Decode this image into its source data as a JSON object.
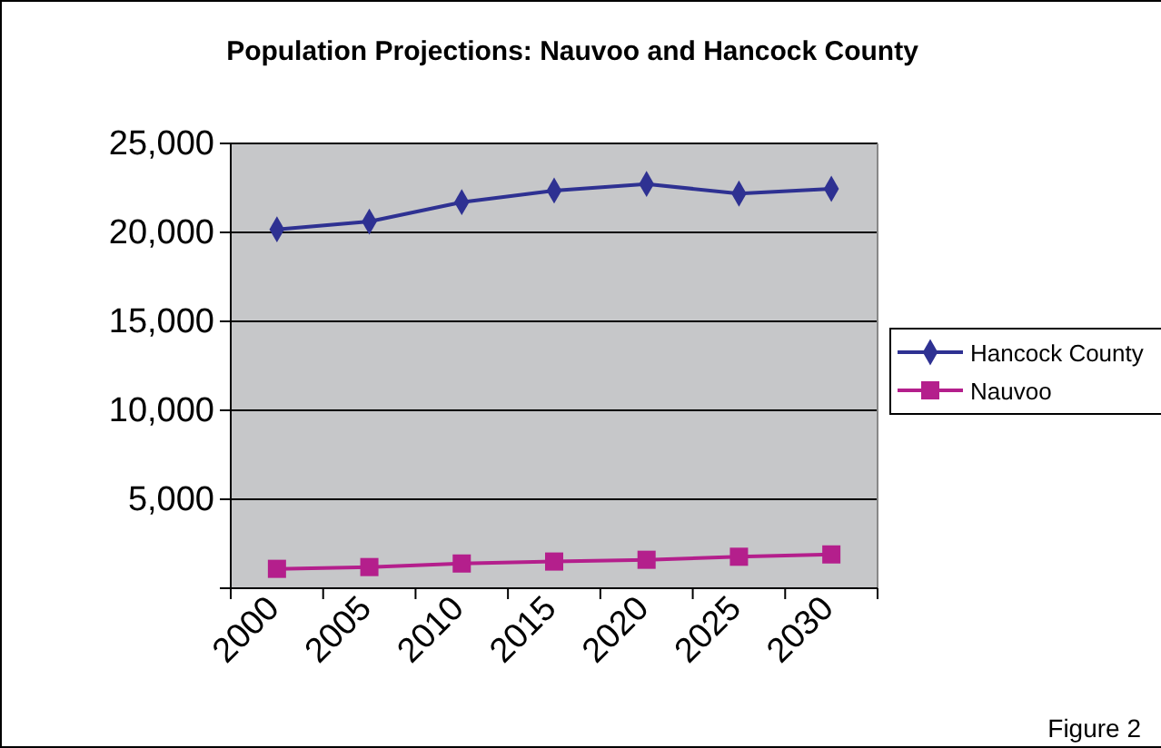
{
  "chart_data": {
    "type": "line",
    "title": "Population Projections: Nauvoo and Hancock County",
    "categories": [
      "2000",
      "2005",
      "2010",
      "2015",
      "2020",
      "2025",
      "2030"
    ],
    "series": [
      {
        "name": "Hancock County",
        "color": "#2e3192",
        "marker": "diamond",
        "values": [
          20170,
          20610,
          21700,
          22350,
          22720,
          22180,
          22450
        ]
      },
      {
        "name": "Nauvoo",
        "color": "#b41f8c",
        "marker": "square",
        "values": [
          1090,
          1190,
          1390,
          1500,
          1600,
          1770,
          1900
        ]
      }
    ],
    "ylim": [
      0,
      25000
    ],
    "yticks": [
      {
        "value": 0,
        "label": null
      },
      {
        "value": 5000,
        "label": "5,000"
      },
      {
        "value": 10000,
        "label": "10,000"
      },
      {
        "value": 15000,
        "label": "15,000"
      },
      {
        "value": 20000,
        "label": "20,000"
      },
      {
        "value": 25000,
        "label": "25,000"
      }
    ],
    "grid": "y",
    "legend": "right",
    "annotations": [
      "Figure 2"
    ]
  }
}
